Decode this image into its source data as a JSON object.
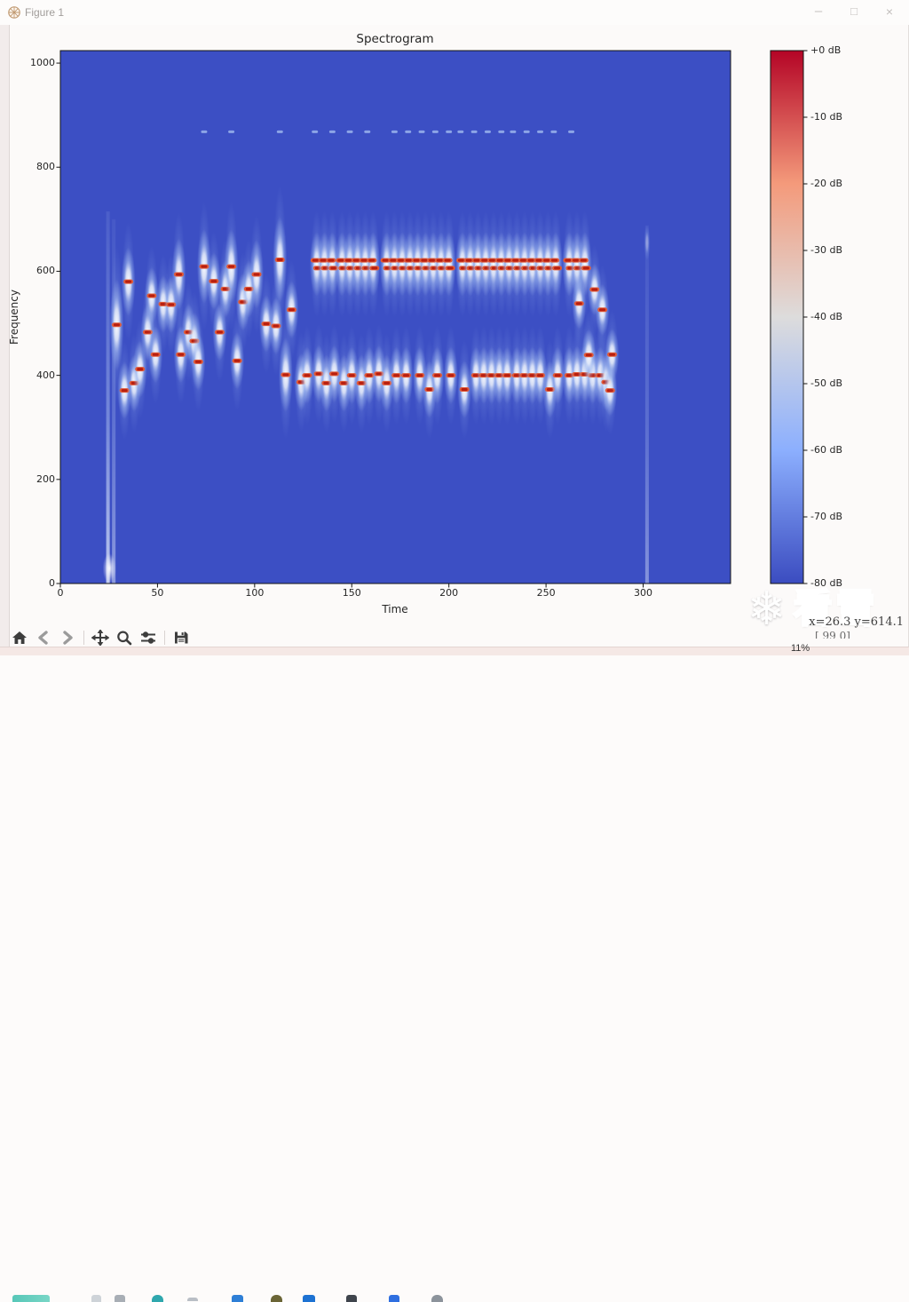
{
  "window": {
    "title": "Figure 1",
    "controls": {
      "minimize": "–",
      "maximize": "□",
      "close": "×"
    }
  },
  "figure": {
    "title": "Spectrogram",
    "xlabel": "Time",
    "ylabel": "Frequency",
    "x_ticks": [
      0,
      50,
      100,
      150,
      200,
      250,
      300
    ],
    "y_ticks": [
      0,
      200,
      400,
      600,
      800,
      1000
    ],
    "colorbar_ticks": [
      "+0 dB",
      "-10 dB",
      "-20 dB",
      "-30 dB",
      "-40 dB",
      "-50 dB",
      "-60 dB",
      "-70 dB",
      "-80 dB"
    ]
  },
  "toolbar": {
    "buttons": [
      "home",
      "back",
      "forward",
      "pan",
      "zoom-to-rect",
      "configure-subplots",
      "save"
    ]
  },
  "statusbar": {
    "coordinates": "x=26.3 y=614.1",
    "partial_line": "[ 99 0]"
  },
  "overlay": {
    "watermark_icon": "snowflake",
    "watermark_flake": "❄",
    "watermark_text": "看雪",
    "percent_text": "11%"
  },
  "colors": {
    "plot_background": "#3c4fc4",
    "blob_center_red": "#b81f10",
    "blob_center_orange": "#e05a38",
    "halo_blue": "#9fbbf2",
    "colorbar_stops": [
      "#b40426",
      "#f49a7b",
      "#dddcdc",
      "#8caffe",
      "#3b4cc0"
    ]
  },
  "chart_data": {
    "type": "heatmap",
    "title": "Spectrogram",
    "xlabel": "Time",
    "ylabel": "Frequency",
    "xlim": [
      0,
      345
    ],
    "ylim": [
      0,
      1024
    ],
    "colorbar": {
      "max_db": 0,
      "min_db": -80,
      "tick_step_db": 10,
      "colormap": "coolwarm"
    },
    "background_level_db": -80,
    "tone_bursts_melody": [
      [
        29,
        497,
        1.6
      ],
      [
        33,
        371
      ],
      [
        35,
        580,
        1.2
      ],
      [
        38,
        385
      ],
      [
        41,
        412
      ],
      [
        45,
        483
      ],
      [
        47,
        553
      ],
      [
        49,
        440
      ],
      [
        53,
        537
      ],
      [
        57,
        536
      ],
      [
        61,
        594,
        1.25
      ],
      [
        62,
        440
      ],
      [
        66,
        483
      ],
      [
        69,
        466
      ],
      [
        71,
        426
      ],
      [
        74,
        609,
        1.3
      ],
      [
        79,
        581
      ],
      [
        82,
        483
      ],
      [
        85,
        566
      ],
      [
        88,
        609,
        1.3
      ],
      [
        91,
        428
      ],
      [
        94,
        541
      ],
      [
        97,
        566
      ],
      [
        101,
        594,
        1.2
      ],
      [
        106,
        499
      ],
      [
        111,
        495
      ],
      [
        113,
        622,
        1.5
      ],
      [
        116,
        401,
        1.3
      ],
      [
        119,
        526
      ],
      [
        124,
        387
      ],
      [
        127,
        400
      ]
    ],
    "fsk_upper_freqs": [
      621,
      606
    ],
    "fsk_upper_burst_times": [
      132,
      136,
      140,
      145,
      149,
      153,
      157,
      161,
      168,
      172,
      176,
      180,
      184,
      188,
      192,
      196,
      200,
      207,
      211,
      215,
      219,
      223,
      227,
      231,
      235,
      239,
      243,
      247,
      251,
      255,
      262,
      266,
      270
    ],
    "fsk_lower_bursts": [
      [
        133,
        403
      ],
      [
        137,
        385
      ],
      [
        141,
        403
      ],
      [
        146,
        385
      ],
      [
        150,
        400
      ],
      [
        155,
        385
      ],
      [
        159,
        400
      ],
      [
        164,
        403
      ],
      [
        168,
        385
      ],
      [
        173,
        400
      ],
      [
        178,
        400
      ],
      [
        185,
        400
      ],
      [
        190,
        373
      ],
      [
        194,
        400
      ],
      [
        201,
        400
      ],
      [
        208,
        373
      ],
      [
        214,
        400
      ],
      [
        218,
        400
      ],
      [
        222,
        400
      ],
      [
        226,
        400
      ],
      [
        230,
        400
      ],
      [
        235,
        400
      ],
      [
        239,
        400
      ],
      [
        243,
        400
      ],
      [
        247,
        400
      ],
      [
        252,
        373
      ],
      [
        256,
        400
      ],
      [
        262,
        400
      ],
      [
        266,
        402
      ],
      [
        270,
        402
      ],
      [
        274,
        400
      ],
      [
        278,
        400
      ],
      [
        281,
        387
      ]
    ],
    "ending_bursts": [
      [
        267,
        538
      ],
      [
        272,
        439
      ],
      [
        275,
        565
      ],
      [
        279,
        526
      ],
      [
        283,
        371
      ],
      [
        284,
        440
      ]
    ],
    "harmonic_band": {
      "freq": 868,
      "times": [
        74,
        88,
        113,
        131,
        140,
        149,
        158,
        172,
        179,
        186,
        193,
        200,
        206,
        213,
        220,
        227,
        233,
        240,
        247,
        254,
        263
      ]
    },
    "vertical_streaks": [
      {
        "time": 24.5,
        "freq_max": 715,
        "opacity": 0.8
      },
      {
        "time": 27.5,
        "freq_max": 700,
        "opacity": 0.5
      },
      {
        "time": 302,
        "freq_max": 688,
        "opacity": 0.45
      }
    ]
  }
}
